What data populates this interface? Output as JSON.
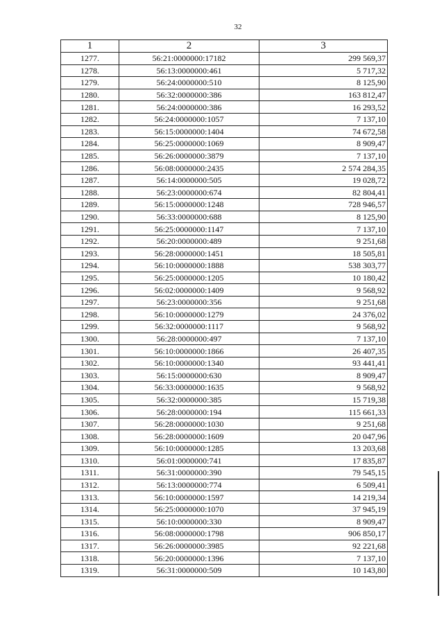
{
  "page_number": "32",
  "table": {
    "headers": [
      "1",
      "2",
      "3"
    ],
    "rows": [
      [
        "1277.",
        "56:21:0000000:17182",
        "299 569,37"
      ],
      [
        "1278.",
        "56:13:0000000:461",
        "5 717,32"
      ],
      [
        "1279.",
        "56:24:0000000:510",
        "8 125,90"
      ],
      [
        "1280.",
        "56:32:0000000:386",
        "163 812,47"
      ],
      [
        "1281.",
        "56:24:0000000:386",
        "16 293,52"
      ],
      [
        "1282.",
        "56:24:0000000:1057",
        "7 137,10"
      ],
      [
        "1283.",
        "56:15:0000000:1404",
        "74 672,58"
      ],
      [
        "1284.",
        "56:25:0000000:1069",
        "8 909,47"
      ],
      [
        "1285.",
        "56:26:0000000:3879",
        "7 137,10"
      ],
      [
        "1286.",
        "56:08:0000000:2435",
        "2 574 284,35"
      ],
      [
        "1287.",
        "56:14:0000000:505",
        "19 028,72"
      ],
      [
        "1288.",
        "56:23:0000000:674",
        "82 804,41"
      ],
      [
        "1289.",
        "56:15:0000000:1248",
        "728 946,57"
      ],
      [
        "1290.",
        "56:33:0000000:688",
        "8 125,90"
      ],
      [
        "1291.",
        "56:25:0000000:1147",
        "7 137,10"
      ],
      [
        "1292.",
        "56:20:0000000:489",
        "9 251,68"
      ],
      [
        "1293.",
        "56:28:0000000:1451",
        "18 505,81"
      ],
      [
        "1294.",
        "56:10:0000000:1888",
        "538 303,77"
      ],
      [
        "1295.",
        "56:25:0000000:1205",
        "10 180,42"
      ],
      [
        "1296.",
        "56:02:0000000:1409",
        "9 568,92"
      ],
      [
        "1297.",
        "56:23:0000000:356",
        "9 251,68"
      ],
      [
        "1298.",
        "56:10:0000000:1279",
        "24 376,02"
      ],
      [
        "1299.",
        "56:32:0000000:1117",
        "9 568,92"
      ],
      [
        "1300.",
        "56:28:0000000:497",
        "7 137,10"
      ],
      [
        "1301.",
        "56:10:0000000:1866",
        "26 407,35"
      ],
      [
        "1302.",
        "56:10:0000000:1340",
        "93 441,41"
      ],
      [
        "1303.",
        "56:15:0000000:630",
        "8 909,47"
      ],
      [
        "1304.",
        "56:33:0000000:1635",
        "9 568,92"
      ],
      [
        "1305.",
        "56:32:0000000:385",
        "15 719,38"
      ],
      [
        "1306.",
        "56:28:0000000:194",
        "115 661,33"
      ],
      [
        "1307.",
        "56:28:0000000:1030",
        "9 251,68"
      ],
      [
        "1308.",
        "56:28:0000000:1609",
        "20 047,96"
      ],
      [
        "1309.",
        "56:10:0000000:1285",
        "13 203,68"
      ],
      [
        "1310.",
        "56:01:0000000:741",
        "17 835,87"
      ],
      [
        "1311.",
        "56:31:0000000:390",
        "79 545,15"
      ],
      [
        "1312.",
        "56:13:0000000:774",
        "6 509,41"
      ],
      [
        "1313.",
        "56:10:0000000:1597",
        "14 219,34"
      ],
      [
        "1314.",
        "56:25:0000000:1070",
        "37 945,19"
      ],
      [
        "1315.",
        "56:10:0000000:330",
        "8 909,47"
      ],
      [
        "1316.",
        "56:08:0000000:1798",
        "906 850,17"
      ],
      [
        "1317.",
        "56:26:0000000:3985",
        "92 221,68"
      ],
      [
        "1318.",
        "56:20:0000000:1396",
        "7 137,10"
      ],
      [
        "1319.",
        "56:31:0000000:509",
        "10 143,80"
      ]
    ]
  }
}
